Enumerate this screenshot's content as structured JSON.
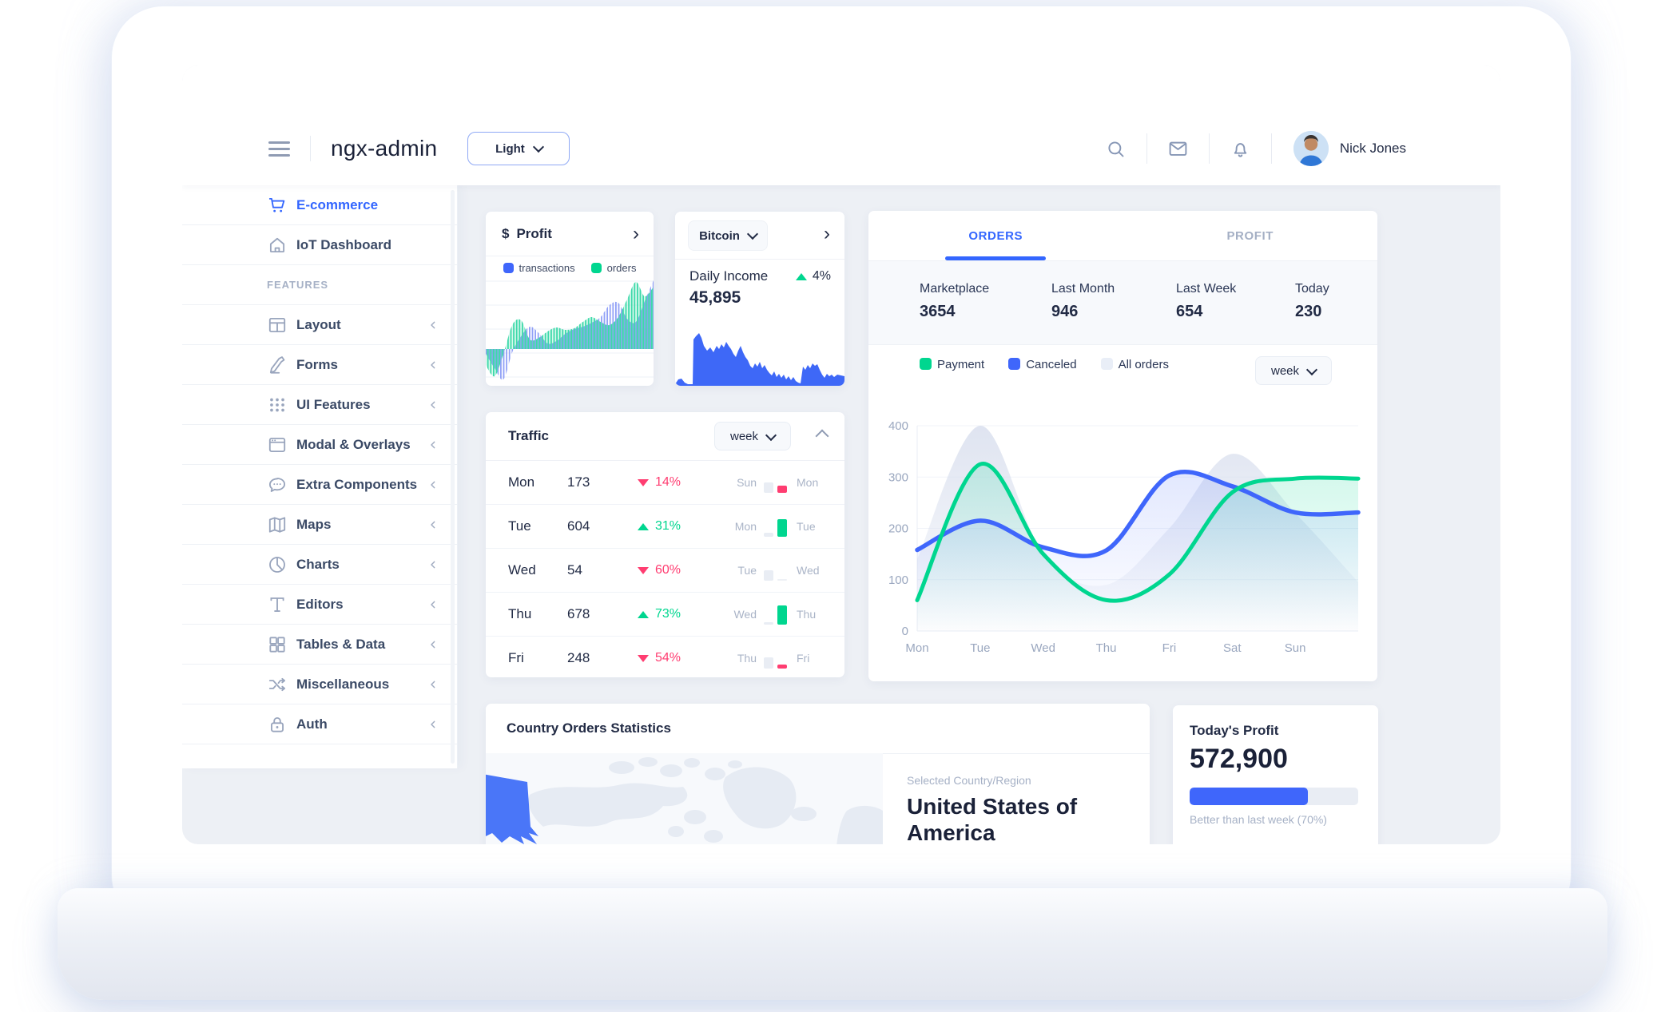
{
  "colors": {
    "primary": "#3366ff",
    "success": "#00d68f",
    "danger": "#ff3d71",
    "background": "#edf0f5",
    "muted_text": "#a6b1c6"
  },
  "header": {
    "app_title": "ngx-admin",
    "theme_select": {
      "value": "Light"
    },
    "icons": [
      "search-icon",
      "mail-icon",
      "bell-icon"
    ],
    "user": {
      "name": "Nick Jones"
    }
  },
  "sidebar": {
    "items": [
      {
        "type": "link",
        "label": "E-commerce",
        "icon": "cart",
        "active": true
      },
      {
        "type": "link",
        "label": "IoT Dashboard",
        "icon": "home",
        "active": false
      },
      {
        "type": "section",
        "label": "FEATURES"
      },
      {
        "type": "group",
        "label": "Layout",
        "icon": "layout"
      },
      {
        "type": "group",
        "label": "Forms",
        "icon": "edit"
      },
      {
        "type": "group",
        "label": "UI Features",
        "icon": "keypad"
      },
      {
        "type": "group",
        "label": "Modal & Overlays",
        "icon": "browser"
      },
      {
        "type": "group",
        "label": "Extra Components",
        "icon": "chat"
      },
      {
        "type": "group",
        "label": "Maps",
        "icon": "map"
      },
      {
        "type": "group",
        "label": "Charts",
        "icon": "pie"
      },
      {
        "type": "group",
        "label": "Editors",
        "icon": "text"
      },
      {
        "type": "group",
        "label": "Tables & Data",
        "icon": "grid"
      },
      {
        "type": "group",
        "label": "Miscellaneous",
        "icon": "shuffle"
      },
      {
        "type": "group",
        "label": "Auth",
        "icon": "lock"
      }
    ]
  },
  "profit_card": {
    "currency": "$",
    "title": "Profit",
    "legend": [
      {
        "label": "transactions",
        "color": "#3f66fb"
      },
      {
        "label": "orders",
        "color": "#00d68f"
      }
    ]
  },
  "bitcoin_card": {
    "selector": "Bitcoin",
    "metric_label": "Daily Income",
    "metric_value": "45,895",
    "change_pct": "4%",
    "trend": "up"
  },
  "orders_card": {
    "tabs": [
      "ORDERS",
      "PROFIT"
    ],
    "active_tab": "ORDERS",
    "stats": [
      {
        "label": "Marketplace",
        "value": "3654"
      },
      {
        "label": "Last Month",
        "value": "946"
      },
      {
        "label": "Last Week",
        "value": "654"
      },
      {
        "label": "Today",
        "value": "230"
      }
    ],
    "legend": [
      {
        "label": "Payment",
        "color": "#00d68f"
      },
      {
        "label": "Canceled",
        "color": "#3f66fb"
      },
      {
        "label": "All orders",
        "color": "#e9eef7"
      }
    ],
    "period": "week"
  },
  "traffic_card": {
    "title": "Traffic",
    "period": "week",
    "rows": [
      {
        "day": "Mon",
        "value": "173",
        "change": "14%",
        "direction": "down",
        "prev_day": "Sun",
        "prev_bar": 13,
        "bar": 9
      },
      {
        "day": "Tue",
        "value": "604",
        "change": "31%",
        "direction": "up",
        "prev_day": "Mon",
        "prev_bar": 5,
        "bar": 22
      },
      {
        "day": "Wed",
        "value": "54",
        "change": "60%",
        "direction": "down",
        "prev_day": "Tue",
        "prev_bar": 13,
        "bar": 2
      },
      {
        "day": "Thu",
        "value": "678",
        "change": "73%",
        "direction": "up",
        "prev_day": "Wed",
        "prev_bar": 3,
        "bar": 24
      },
      {
        "day": "Fri",
        "value": "248",
        "change": "54%",
        "direction": "down",
        "prev_day": "Thu",
        "prev_bar": 14,
        "bar": 5
      }
    ]
  },
  "country_card": {
    "title": "Country Orders Statistics",
    "selected_label": "Selected Country/Region",
    "country": "United States of America"
  },
  "today_profit_card": {
    "title": "Today's Profit",
    "value": "572,900",
    "progress_pct": 70,
    "note": "Better than last week (70%)"
  },
  "chart_data": [
    {
      "id": "orders_week",
      "type": "line",
      "title": "Orders by week",
      "x": [
        "Mon",
        "Tue",
        "Wed",
        "Thu",
        "Fri",
        "Sat",
        "Sun"
      ],
      "ylim": [
        0,
        400
      ],
      "yticks": [
        0,
        100,
        200,
        300,
        400
      ],
      "legend_position": "top",
      "series": [
        {
          "name": "All orders",
          "style": "area",
          "color": "#dce2ef",
          "values": [
            140,
            400,
            150,
            90,
            200,
            345,
            230,
            95
          ]
        },
        {
          "name": "Canceled",
          "style": "line",
          "color": "#3f66fb",
          "values": [
            158,
            215,
            163,
            157,
            303,
            282,
            231,
            231
          ]
        },
        {
          "name": "Payment",
          "style": "line",
          "color": "#00d68f",
          "values": [
            60,
            325,
            150,
            60,
            110,
            270,
            297,
            297
          ]
        }
      ],
      "note": "8th value of each series extends the curve past Sun to the plot edge"
    },
    {
      "id": "profit_mini",
      "type": "area",
      "title": "Profit card striped chart",
      "baseline_y": 87,
      "series": [
        {
          "name": "transactions",
          "color": "#7d90f5",
          "values": [
            -6,
            -24,
            -38,
            -4,
            16,
            28,
            20,
            7,
            10,
            19,
            25,
            28,
            33,
            40,
            55,
            58,
            38,
            34,
            60,
            86
          ]
        },
        {
          "name": "orders",
          "color": "#2bd6a2",
          "values": [
            -20,
            -34,
            -6,
            30,
            36,
            12,
            14,
            22,
            27,
            24,
            26,
            34,
            40,
            34,
            30,
            40,
            62,
            84,
            66,
            78
          ]
        }
      ]
    },
    {
      "id": "bitcoin_mini",
      "type": "area",
      "title": "Daily income area chart",
      "color": "#3e68f7",
      "points": [
        [
          0,
          2
        ],
        [
          4,
          8
        ],
        [
          8,
          9
        ],
        [
          12,
          4
        ],
        [
          16,
          2
        ],
        [
          22,
          2
        ],
        [
          23,
          58
        ],
        [
          26,
          62
        ],
        [
          30,
          66
        ],
        [
          33,
          60
        ],
        [
          36,
          50
        ],
        [
          40,
          44
        ],
        [
          44,
          48
        ],
        [
          48,
          42
        ],
        [
          52,
          50
        ],
        [
          55,
          46
        ],
        [
          58,
          52
        ],
        [
          61,
          48
        ],
        [
          64,
          55
        ],
        [
          67,
          50
        ],
        [
          70,
          46
        ],
        [
          73,
          40
        ],
        [
          76,
          36
        ],
        [
          79,
          44
        ],
        [
          82,
          50
        ],
        [
          85,
          42
        ],
        [
          88,
          36
        ],
        [
          91,
          32
        ],
        [
          94,
          25
        ],
        [
          97,
          22
        ],
        [
          100,
          28
        ],
        [
          103,
          24
        ],
        [
          106,
          30
        ],
        [
          109,
          22
        ],
        [
          112,
          26
        ],
        [
          115,
          20
        ],
        [
          118,
          16
        ],
        [
          121,
          13
        ],
        [
          124,
          18
        ],
        [
          127,
          11
        ],
        [
          130,
          15
        ],
        [
          133,
          10
        ],
        [
          136,
          14
        ],
        [
          139,
          8
        ],
        [
          142,
          12
        ],
        [
          145,
          7
        ],
        [
          148,
          11
        ],
        [
          151,
          6
        ],
        [
          154,
          4
        ],
        [
          157,
          3
        ],
        [
          160,
          24
        ],
        [
          163,
          20
        ],
        [
          166,
          26
        ],
        [
          169,
          22
        ],
        [
          172,
          28
        ],
        [
          175,
          25
        ],
        [
          178,
          27
        ],
        [
          181,
          20
        ],
        [
          184,
          14
        ],
        [
          187,
          10
        ],
        [
          190,
          15
        ],
        [
          193,
          12
        ],
        [
          196,
          14
        ],
        [
          199,
          11
        ],
        [
          203,
          14
        ],
        [
          212,
          12
        ]
      ]
    }
  ]
}
